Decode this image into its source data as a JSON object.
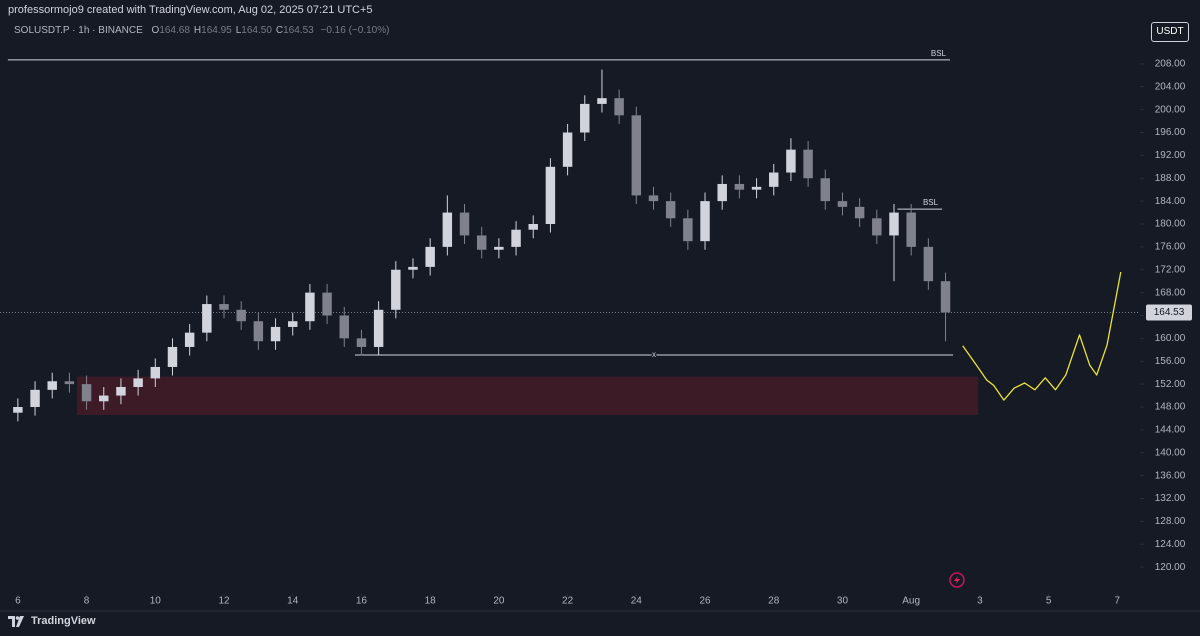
{
  "header": {
    "caption": "professormojo9 created with TradingView.com, Aug 02, 2025 07:21 UTC+5",
    "symbol": "SOLUSDT.P · 1h · BINANCE",
    "legend": [
      {
        "label": "O",
        "value": "164.68"
      },
      {
        "label": "H",
        "value": "164.95"
      },
      {
        "label": "L",
        "value": "164.50"
      },
      {
        "label": "C",
        "value": "164.53"
      }
    ],
    "change": "−0.16 (−0.10%)",
    "currency": "USDT"
  },
  "footer": {
    "brand": "TradingView"
  },
  "chart_data": {
    "type": "candlestick",
    "up_color": "#d1d4dc",
    "down_color": "#7f828c",
    "x": [
      0,
      0.5,
      1,
      1.5,
      2,
      2.5,
      3,
      3.5,
      4,
      4.5,
      5,
      5.5,
      6,
      6.5,
      7,
      7.5,
      8,
      8.5,
      9,
      9.5,
      10,
      10.5,
      11,
      11.5,
      12,
      12.5,
      13,
      13.5,
      14,
      14.5,
      15,
      15.5,
      16,
      16.5,
      17,
      17.5,
      18,
      18.5,
      19,
      19.5,
      20,
      20.5,
      21,
      21.5,
      22,
      22.5,
      23,
      23.5,
      24,
      24.5,
      25,
      25.5,
      26,
      26.5,
      27
    ],
    "open": [
      147,
      148,
      151,
      152.5,
      152,
      149,
      150,
      151.5,
      153,
      155,
      158.5,
      161,
      166,
      165,
      163,
      159.5,
      162,
      163,
      168,
      164,
      160,
      158.5,
      165,
      172,
      172.5,
      176,
      182,
      178,
      175.5,
      176,
      179,
      180,
      190,
      196,
      201,
      202,
      199,
      185,
      184,
      181,
      177,
      184,
      187,
      186,
      186.5,
      189,
      193,
      188,
      184,
      183,
      181,
      178,
      182,
      176,
      170
    ],
    "high": [
      149.5,
      152.5,
      154,
      154,
      153.5,
      151.5,
      153,
      154.5,
      156.5,
      160,
      162.5,
      167.5,
      167.5,
      166.5,
      164.5,
      163.5,
      164.5,
      169.5,
      169.5,
      165.5,
      161.5,
      166.5,
      173.5,
      174,
      177.5,
      185,
      183.5,
      179.5,
      177.5,
      180.5,
      181.5,
      191.5,
      197.5,
      202.5,
      207,
      203.5,
      200.5,
      186.5,
      185.5,
      182.5,
      185.5,
      188.5,
      188.5,
      188,
      190.5,
      195,
      194.5,
      189.5,
      185.5,
      184.5,
      182.5,
      183.5,
      183.5,
      177.5,
      171.5
    ],
    "low": [
      145.5,
      146.5,
      149.5,
      150.5,
      147.5,
      147.5,
      148.5,
      150,
      151.5,
      153.5,
      157,
      159.5,
      163.5,
      161.5,
      158,
      158,
      160.5,
      161.5,
      162.5,
      158.5,
      157,
      157,
      163.5,
      170.5,
      171,
      174.5,
      176.5,
      174,
      174,
      174.5,
      177.5,
      178.5,
      188.5,
      194.5,
      199.5,
      197.5,
      183.5,
      182.5,
      179.5,
      175.5,
      175.5,
      182.5,
      184.5,
      184.5,
      185,
      187.5,
      186.5,
      182.5,
      181.5,
      179.5,
      176.5,
      170,
      174.5,
      168.5,
      159.5
    ],
    "close": [
      148,
      151,
      152.5,
      152,
      149,
      150,
      151.5,
      153,
      155,
      158.5,
      161,
      166,
      165,
      163,
      159.5,
      162,
      163,
      168,
      164,
      160,
      158.5,
      165,
      172,
      172.5,
      176,
      182,
      178,
      175.5,
      176,
      179,
      180,
      190,
      196,
      201,
      202,
      199,
      185,
      184,
      181,
      177,
      184,
      187,
      186,
      186.5,
      189,
      193,
      188,
      184,
      183,
      181,
      178,
      182,
      176,
      170,
      164.53
    ],
    "last_price": {
      "value": 164.53,
      "label": "164.53"
    },
    "levels": [
      {
        "label": "BSL",
        "price": 208.7,
        "x": [
          -0.29,
          27.13
        ]
      },
      {
        "label": "BSL",
        "price": 182.6,
        "x": [
          25.6,
          26.9
        ]
      },
      {
        "label": "x",
        "price": 157.1,
        "x": [
          9.81,
          27.22
        ]
      }
    ],
    "zone": {
      "x": [
        1.72,
        27.95
      ],
      "y": [
        146.6,
        153.3
      ],
      "color": "#4a1c28"
    },
    "projection": {
      "color": "#e8e337",
      "x": [
        27.5,
        27.9,
        28.2,
        28.4,
        28.7,
        29.0,
        29.3,
        29.6,
        29.9,
        30.2,
        30.5,
        30.9,
        31.2,
        31.4,
        31.7,
        32.1
      ],
      "y": [
        158.7,
        155.3,
        152.7,
        151.8,
        149.2,
        151.3,
        152.2,
        151.0,
        153.1,
        151.0,
        153.6,
        160.6,
        155.3,
        153.6,
        158.8,
        171.6
      ]
    },
    "xlim": [
      -0.52,
      32.66
    ],
    "xticks": [
      {
        "value": 0,
        "label": "6"
      },
      {
        "value": 2,
        "label": "8"
      },
      {
        "value": 4,
        "label": "10"
      },
      {
        "value": 6,
        "label": "12"
      },
      {
        "value": 8,
        "label": "14"
      },
      {
        "value": 10,
        "label": "16"
      },
      {
        "value": 12,
        "label": "18"
      },
      {
        "value": 14,
        "label": "20"
      },
      {
        "value": 16,
        "label": "22"
      },
      {
        "value": 18,
        "label": "24"
      },
      {
        "value": 20,
        "label": "26"
      },
      {
        "value": 22,
        "label": "28"
      },
      {
        "value": 24,
        "label": "30"
      },
      {
        "value": 26,
        "label": "Aug"
      },
      {
        "value": 28,
        "label": "3"
      },
      {
        "value": 30,
        "label": "5"
      },
      {
        "value": 32,
        "label": "7"
      }
    ],
    "ylim": [
      116,
      211.3
    ],
    "yticks": [
      {
        "value": 120,
        "label": "120.00"
      },
      {
        "value": 124,
        "label": "124.00"
      },
      {
        "value": 128,
        "label": "128.00"
      },
      {
        "value": 132,
        "label": "132.00"
      },
      {
        "value": 136,
        "label": "136.00"
      },
      {
        "value": 140,
        "label": "140.00"
      },
      {
        "value": 144,
        "label": "144.00"
      },
      {
        "value": 148,
        "label": "148.00"
      },
      {
        "value": 152,
        "label": "152.00"
      },
      {
        "value": 156,
        "label": "156.00"
      },
      {
        "value": 160,
        "label": "160.00"
      },
      {
        "value": 164,
        "label": "164.00"
      },
      {
        "value": 168,
        "label": "168.00"
      },
      {
        "value": 172,
        "label": "172.00"
      },
      {
        "value": 176,
        "label": "176.00"
      },
      {
        "value": 180,
        "label": "180.00"
      },
      {
        "value": 184,
        "label": "184.00"
      },
      {
        "value": 188,
        "label": "188.00"
      },
      {
        "value": 192,
        "label": "192.00"
      },
      {
        "value": 196,
        "label": "196.00"
      },
      {
        "value": 200,
        "label": "200.00"
      },
      {
        "value": 204,
        "label": "204.00"
      },
      {
        "value": 208,
        "label": "208.00"
      }
    ]
  }
}
